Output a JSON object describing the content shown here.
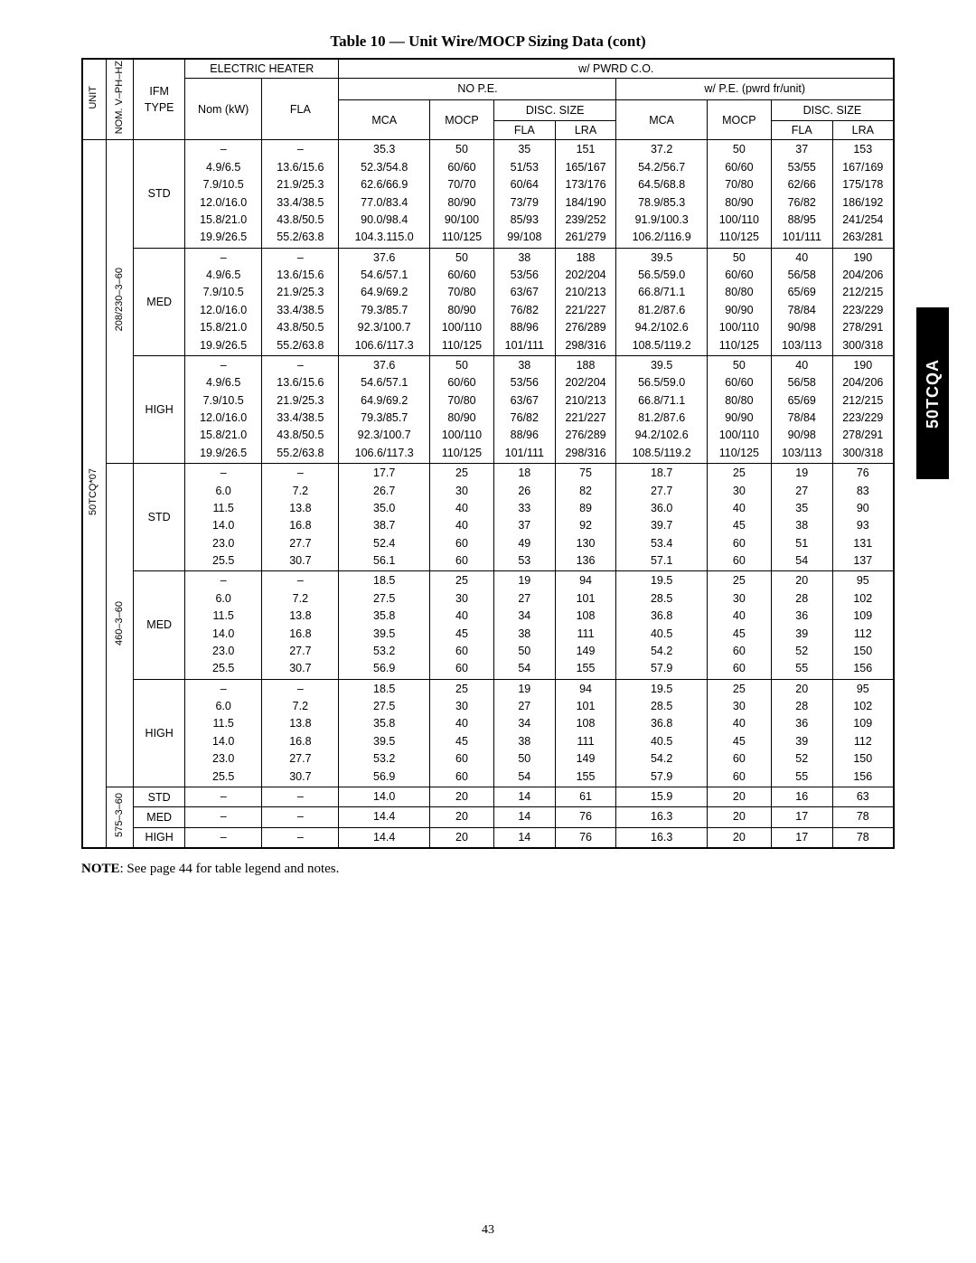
{
  "title": "Table 10 — Unit Wire/MOCP Sizing Data (cont)",
  "side_tab": "50TCQA",
  "note_label": "NOTE",
  "note_text": ": See page 44 for table legend and notes.",
  "page_number": "43",
  "head": {
    "unit": "UNIT",
    "nom": "NOM. V–PH–HZ",
    "ifm": "IFM TYPE",
    "electric_heater": "ELECTRIC HEATER",
    "nom_kw": "Nom (kW)",
    "fla_head": "FLA",
    "w_pwr": "w/ PWRD C.O.",
    "no_pe": "NO P.E.",
    "w_pe": "w/ P.E. (pwrd fr/unit)",
    "mca": "MCA",
    "mocp": "MOCP",
    "disc_size": "DISC. SIZE",
    "fla": "FLA",
    "lra": "LRA"
  },
  "unit_label": "50TCQ*07",
  "voltage_groups": [
    {
      "nom": "208/230–3–60",
      "ifm_blocks": [
        {
          "ifm": "STD",
          "rows": [
            {
              "kw": "–",
              "fla": "–",
              "mca": "35.3",
              "mocp": "50",
              "d_fla": "35",
              "d_lra": "151",
              "mca2": "37.2",
              "mocp2": "50",
              "d2_fla": "37",
              "d2_lra": "153"
            },
            {
              "kw": "4.9/6.5",
              "fla": "13.6/15.6",
              "mca": "52.3/54.8",
              "mocp": "60/60",
              "d_fla": "51/53",
              "d_lra": "165/167",
              "mca2": "54.2/56.7",
              "mocp2": "60/60",
              "d2_fla": "53/55",
              "d2_lra": "167/169"
            },
            {
              "kw": "7.9/10.5",
              "fla": "21.9/25.3",
              "mca": "62.6/66.9",
              "mocp": "70/70",
              "d_fla": "60/64",
              "d_lra": "173/176",
              "mca2": "64.5/68.8",
              "mocp2": "70/80",
              "d2_fla": "62/66",
              "d2_lra": "175/178"
            },
            {
              "kw": "12.0/16.0",
              "fla": "33.4/38.5",
              "mca": "77.0/83.4",
              "mocp": "80/90",
              "d_fla": "73/79",
              "d_lra": "184/190",
              "mca2": "78.9/85.3",
              "mocp2": "80/90",
              "d2_fla": "76/82",
              "d2_lra": "186/192"
            },
            {
              "kw": "15.8/21.0",
              "fla": "43.8/50.5",
              "mca": "90.0/98.4",
              "mocp": "90/100",
              "d_fla": "85/93",
              "d_lra": "239/252",
              "mca2": "91.9/100.3",
              "mocp2": "100/110",
              "d2_fla": "88/95",
              "d2_lra": "241/254"
            },
            {
              "kw": "19.9/26.5",
              "fla": "55.2/63.8",
              "mca": "104.3.115.0",
              "mocp": "110/125",
              "d_fla": "99/108",
              "d_lra": "261/279",
              "mca2": "106.2/116.9",
              "mocp2": "110/125",
              "d2_fla": "101/111",
              "d2_lra": "263/281"
            }
          ]
        },
        {
          "ifm": "MED",
          "rows": [
            {
              "kw": "–",
              "fla": "–",
              "mca": "37.6",
              "mocp": "50",
              "d_fla": "38",
              "d_lra": "188",
              "mca2": "39.5",
              "mocp2": "50",
              "d2_fla": "40",
              "d2_lra": "190"
            },
            {
              "kw": "4.9/6.5",
              "fla": "13.6/15.6",
              "mca": "54.6/57.1",
              "mocp": "60/60",
              "d_fla": "53/56",
              "d_lra": "202/204",
              "mca2": "56.5/59.0",
              "mocp2": "60/60",
              "d2_fla": "56/58",
              "d2_lra": "204/206"
            },
            {
              "kw": "7.9/10.5",
              "fla": "21.9/25.3",
              "mca": "64.9/69.2",
              "mocp": "70/80",
              "d_fla": "63/67",
              "d_lra": "210/213",
              "mca2": "66.8/71.1",
              "mocp2": "80/80",
              "d2_fla": "65/69",
              "d2_lra": "212/215"
            },
            {
              "kw": "12.0/16.0",
              "fla": "33.4/38.5",
              "mca": "79.3/85.7",
              "mocp": "80/90",
              "d_fla": "76/82",
              "d_lra": "221/227",
              "mca2": "81.2/87.6",
              "mocp2": "90/90",
              "d2_fla": "78/84",
              "d2_lra": "223/229"
            },
            {
              "kw": "15.8/21.0",
              "fla": "43.8/50.5",
              "mca": "92.3/100.7",
              "mocp": "100/110",
              "d_fla": "88/96",
              "d_lra": "276/289",
              "mca2": "94.2/102.6",
              "mocp2": "100/110",
              "d2_fla": "90/98",
              "d2_lra": "278/291"
            },
            {
              "kw": "19.9/26.5",
              "fla": "55.2/63.8",
              "mca": "106.6/117.3",
              "mocp": "110/125",
              "d_fla": "101/111",
              "d_lra": "298/316",
              "mca2": "108.5/119.2",
              "mocp2": "110/125",
              "d2_fla": "103/113",
              "d2_lra": "300/318"
            }
          ]
        },
        {
          "ifm": "HIGH",
          "rows": [
            {
              "kw": "–",
              "fla": "–",
              "mca": "37.6",
              "mocp": "50",
              "d_fla": "38",
              "d_lra": "188",
              "mca2": "39.5",
              "mocp2": "50",
              "d2_fla": "40",
              "d2_lra": "190"
            },
            {
              "kw": "4.9/6.5",
              "fla": "13.6/15.6",
              "mca": "54.6/57.1",
              "mocp": "60/60",
              "d_fla": "53/56",
              "d_lra": "202/204",
              "mca2": "56.5/59.0",
              "mocp2": "60/60",
              "d2_fla": "56/58",
              "d2_lra": "204/206"
            },
            {
              "kw": "7.9/10.5",
              "fla": "21.9/25.3",
              "mca": "64.9/69.2",
              "mocp": "70/80",
              "d_fla": "63/67",
              "d_lra": "210/213",
              "mca2": "66.8/71.1",
              "mocp2": "80/80",
              "d2_fla": "65/69",
              "d2_lra": "212/215"
            },
            {
              "kw": "12.0/16.0",
              "fla": "33.4/38.5",
              "mca": "79.3/85.7",
              "mocp": "80/90",
              "d_fla": "76/82",
              "d_lra": "221/227",
              "mca2": "81.2/87.6",
              "mocp2": "90/90",
              "d2_fla": "78/84",
              "d2_lra": "223/229"
            },
            {
              "kw": "15.8/21.0",
              "fla": "43.8/50.5",
              "mca": "92.3/100.7",
              "mocp": "100/110",
              "d_fla": "88/96",
              "d_lra": "276/289",
              "mca2": "94.2/102.6",
              "mocp2": "100/110",
              "d2_fla": "90/98",
              "d2_lra": "278/291"
            },
            {
              "kw": "19.9/26.5",
              "fla": "55.2/63.8",
              "mca": "106.6/117.3",
              "mocp": "110/125",
              "d_fla": "101/111",
              "d_lra": "298/316",
              "mca2": "108.5/119.2",
              "mocp2": "110/125",
              "d2_fla": "103/113",
              "d2_lra": "300/318"
            }
          ]
        }
      ]
    },
    {
      "nom": "460–3–60",
      "ifm_blocks": [
        {
          "ifm": "STD",
          "rows": [
            {
              "kw": "–",
              "fla": "–",
              "mca": "17.7",
              "mocp": "25",
              "d_fla": "18",
              "d_lra": "75",
              "mca2": "18.7",
              "mocp2": "25",
              "d2_fla": "19",
              "d2_lra": "76"
            },
            {
              "kw": "6.0",
              "fla": "7.2",
              "mca": "26.7",
              "mocp": "30",
              "d_fla": "26",
              "d_lra": "82",
              "mca2": "27.7",
              "mocp2": "30",
              "d2_fla": "27",
              "d2_lra": "83"
            },
            {
              "kw": "11.5",
              "fla": "13.8",
              "mca": "35.0",
              "mocp": "40",
              "d_fla": "33",
              "d_lra": "89",
              "mca2": "36.0",
              "mocp2": "40",
              "d2_fla": "35",
              "d2_lra": "90"
            },
            {
              "kw": "14.0",
              "fla": "16.8",
              "mca": "38.7",
              "mocp": "40",
              "d_fla": "37",
              "d_lra": "92",
              "mca2": "39.7",
              "mocp2": "45",
              "d2_fla": "38",
              "d2_lra": "93"
            },
            {
              "kw": "23.0",
              "fla": "27.7",
              "mca": "52.4",
              "mocp": "60",
              "d_fla": "49",
              "d_lra": "130",
              "mca2": "53.4",
              "mocp2": "60",
              "d2_fla": "51",
              "d2_lra": "131"
            },
            {
              "kw": "25.5",
              "fla": "30.7",
              "mca": "56.1",
              "mocp": "60",
              "d_fla": "53",
              "d_lra": "136",
              "mca2": "57.1",
              "mocp2": "60",
              "d2_fla": "54",
              "d2_lra": "137"
            }
          ]
        },
        {
          "ifm": "MED",
          "rows": [
            {
              "kw": "–",
              "fla": "–",
              "mca": "18.5",
              "mocp": "25",
              "d_fla": "19",
              "d_lra": "94",
              "mca2": "19.5",
              "mocp2": "25",
              "d2_fla": "20",
              "d2_lra": "95"
            },
            {
              "kw": "6.0",
              "fla": "7.2",
              "mca": "27.5",
              "mocp": "30",
              "d_fla": "27",
              "d_lra": "101",
              "mca2": "28.5",
              "mocp2": "30",
              "d2_fla": "28",
              "d2_lra": "102"
            },
            {
              "kw": "11.5",
              "fla": "13.8",
              "mca": "35.8",
              "mocp": "40",
              "d_fla": "34",
              "d_lra": "108",
              "mca2": "36.8",
              "mocp2": "40",
              "d2_fla": "36",
              "d2_lra": "109"
            },
            {
              "kw": "14.0",
              "fla": "16.8",
              "mca": "39.5",
              "mocp": "45",
              "d_fla": "38",
              "d_lra": "111",
              "mca2": "40.5",
              "mocp2": "45",
              "d2_fla": "39",
              "d2_lra": "112"
            },
            {
              "kw": "23.0",
              "fla": "27.7",
              "mca": "53.2",
              "mocp": "60",
              "d_fla": "50",
              "d_lra": "149",
              "mca2": "54.2",
              "mocp2": "60",
              "d2_fla": "52",
              "d2_lra": "150"
            },
            {
              "kw": "25.5",
              "fla": "30.7",
              "mca": "56.9",
              "mocp": "60",
              "d_fla": "54",
              "d_lra": "155",
              "mca2": "57.9",
              "mocp2": "60",
              "d2_fla": "55",
              "d2_lra": "156"
            }
          ]
        },
        {
          "ifm": "HIGH",
          "rows": [
            {
              "kw": "–",
              "fla": "–",
              "mca": "18.5",
              "mocp": "25",
              "d_fla": "19",
              "d_lra": "94",
              "mca2": "19.5",
              "mocp2": "25",
              "d2_fla": "20",
              "d2_lra": "95"
            },
            {
              "kw": "6.0",
              "fla": "7.2",
              "mca": "27.5",
              "mocp": "30",
              "d_fla": "27",
              "d_lra": "101",
              "mca2": "28.5",
              "mocp2": "30",
              "d2_fla": "28",
              "d2_lra": "102"
            },
            {
              "kw": "11.5",
              "fla": "13.8",
              "mca": "35.8",
              "mocp": "40",
              "d_fla": "34",
              "d_lra": "108",
              "mca2": "36.8",
              "mocp2": "40",
              "d2_fla": "36",
              "d2_lra": "109"
            },
            {
              "kw": "14.0",
              "fla": "16.8",
              "mca": "39.5",
              "mocp": "45",
              "d_fla": "38",
              "d_lra": "111",
              "mca2": "40.5",
              "mocp2": "45",
              "d2_fla": "39",
              "d2_lra": "112"
            },
            {
              "kw": "23.0",
              "fla": "27.7",
              "mca": "53.2",
              "mocp": "60",
              "d_fla": "50",
              "d_lra": "149",
              "mca2": "54.2",
              "mocp2": "60",
              "d2_fla": "52",
              "d2_lra": "150"
            },
            {
              "kw": "25.5",
              "fla": "30.7",
              "mca": "56.9",
              "mocp": "60",
              "d_fla": "54",
              "d_lra": "155",
              "mca2": "57.9",
              "mocp2": "60",
              "d2_fla": "55",
              "d2_lra": "156"
            }
          ]
        }
      ]
    },
    {
      "nom": "575–3–60",
      "ifm_blocks": [
        {
          "ifm": "STD",
          "rows": [
            {
              "kw": "–",
              "fla": "–",
              "mca": "14.0",
              "mocp": "20",
              "d_fla": "14",
              "d_lra": "61",
              "mca2": "15.9",
              "mocp2": "20",
              "d2_fla": "16",
              "d2_lra": "63"
            }
          ]
        },
        {
          "ifm": "MED",
          "rows": [
            {
              "kw": "–",
              "fla": "–",
              "mca": "14.4",
              "mocp": "20",
              "d_fla": "14",
              "d_lra": "76",
              "mca2": "16.3",
              "mocp2": "20",
              "d2_fla": "17",
              "d2_lra": "78"
            }
          ]
        },
        {
          "ifm": "HIGH",
          "rows": [
            {
              "kw": "–",
              "fla": "–",
              "mca": "14.4",
              "mocp": "20",
              "d_fla": "14",
              "d_lra": "76",
              "mca2": "16.3",
              "mocp2": "20",
              "d2_fla": "17",
              "d2_lra": "78"
            }
          ]
        }
      ]
    }
  ]
}
